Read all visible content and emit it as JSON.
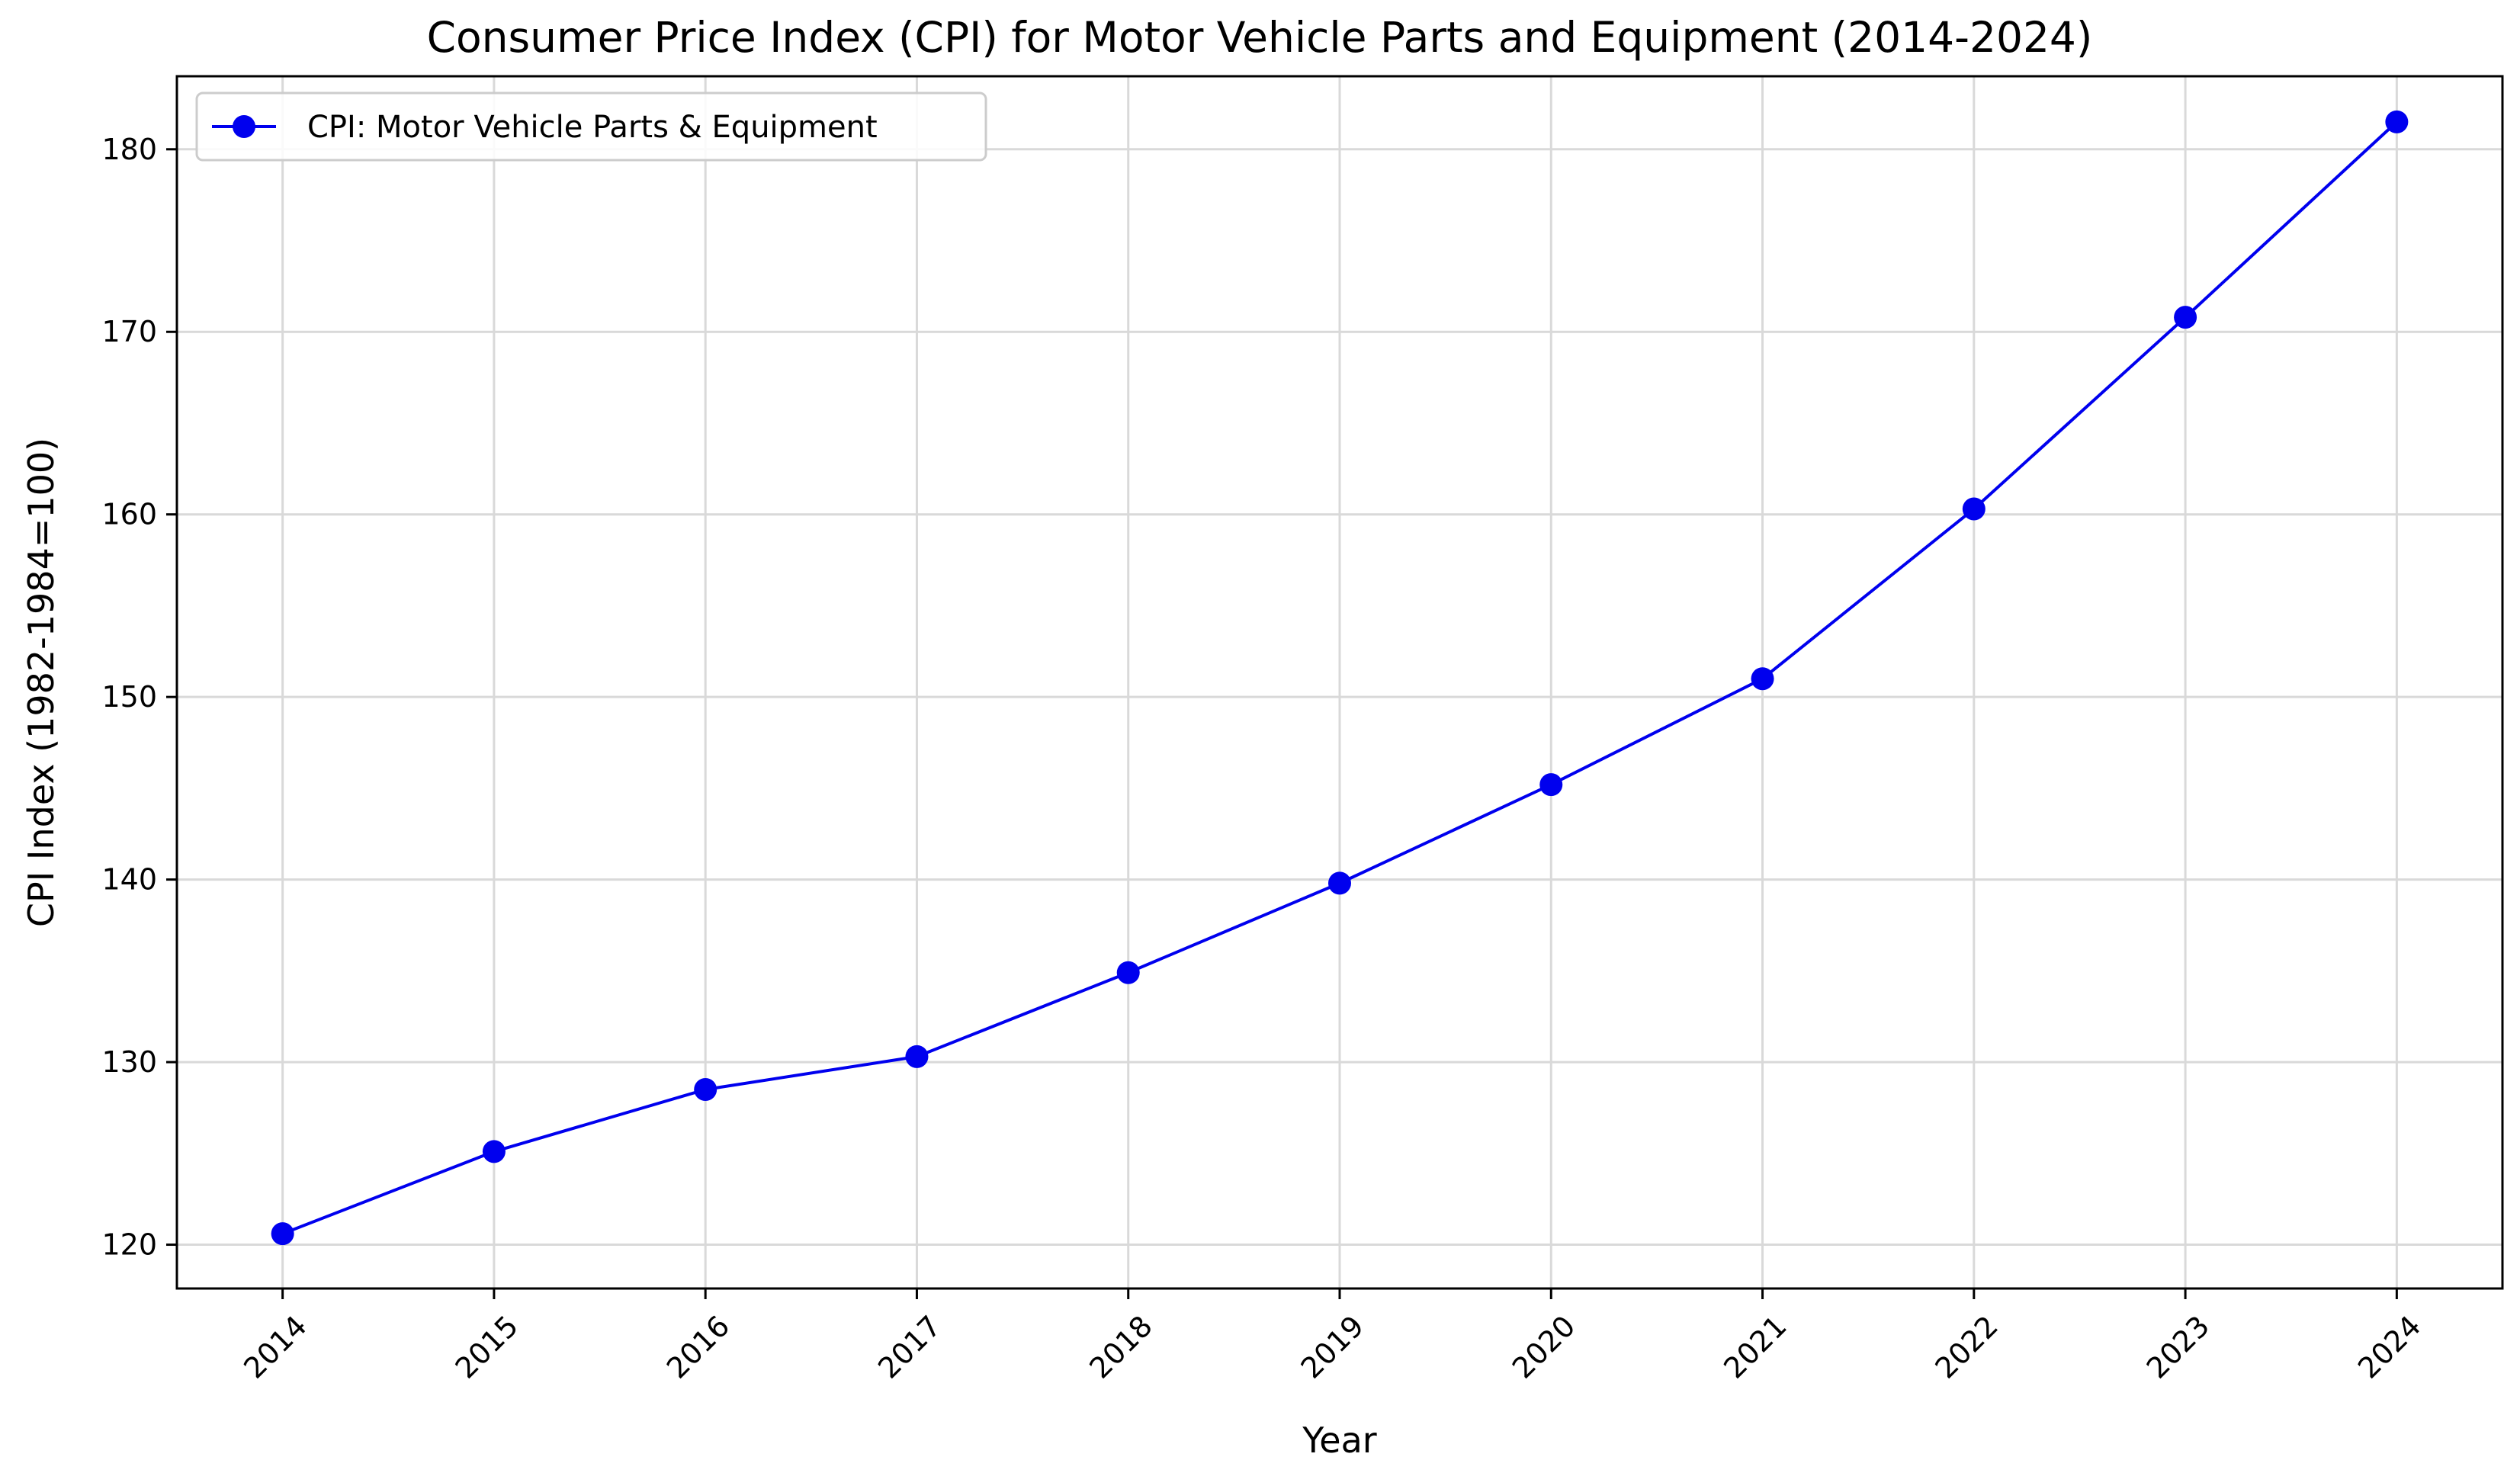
{
  "chart_data": {
    "type": "line",
    "title": "Consumer Price Index (CPI) for Motor Vehicle Parts and Equipment (2014-2024)",
    "xlabel": "Year",
    "ylabel": "CPI Index (1982-1984=100)",
    "x": [
      2014,
      2015,
      2016,
      2017,
      2018,
      2019,
      2020,
      2021,
      2022,
      2023,
      2024
    ],
    "x_tick_labels": [
      "2014",
      "2015",
      "2016",
      "2017",
      "2018",
      "2019",
      "2020",
      "2021",
      "2022",
      "2023",
      "2024"
    ],
    "y_ticks": [
      120,
      130,
      140,
      150,
      160,
      170,
      180
    ],
    "y_tick_labels": [
      "120",
      "130",
      "140",
      "150",
      "160",
      "170",
      "180"
    ],
    "ylim": [
      117.6,
      184.0
    ],
    "xlim": [
      2013.5,
      2024.5
    ],
    "grid": true,
    "legend_position": "top-left",
    "series": [
      {
        "name": "CPI: Motor Vehicle Parts & Equipment",
        "color": "#0000ee",
        "marker": "circle",
        "values": [
          120.6,
          125.1,
          128.5,
          130.3,
          134.9,
          139.8,
          145.2,
          151.0,
          160.3,
          170.8,
          181.5
        ]
      }
    ]
  }
}
